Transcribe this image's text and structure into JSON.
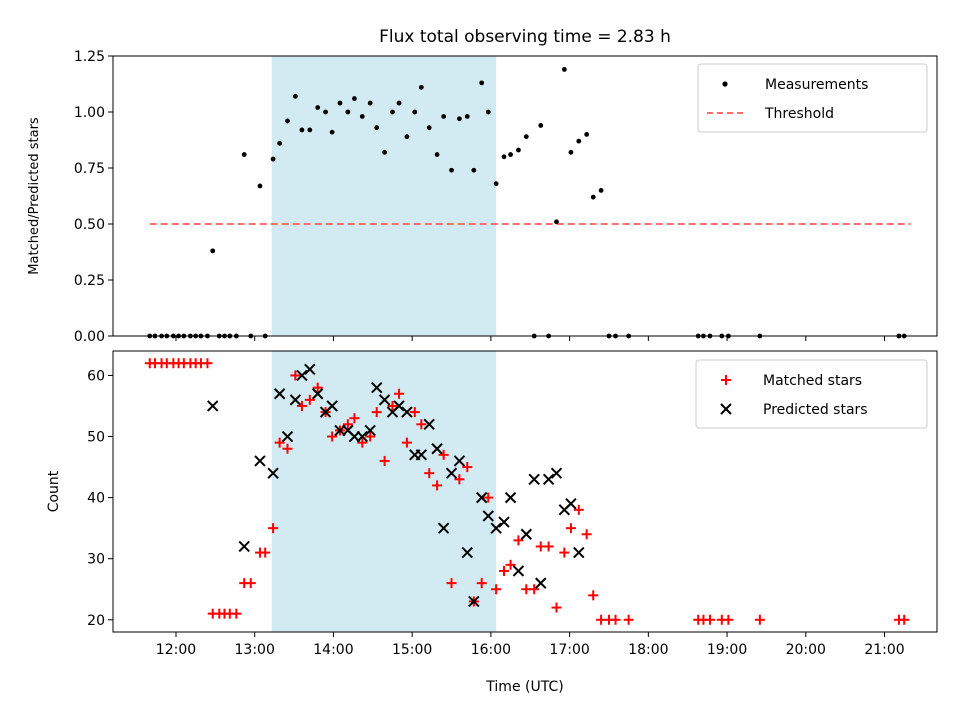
{
  "chart_data": [
    {
      "type": "scatter",
      "title": "Flux total observing time = 2.83 h",
      "xlabel": "",
      "ylabel": "Matched/Predicted stars",
      "xlim": [
        "11:12",
        "21:40"
      ],
      "ylim": [
        0,
        1.25
      ],
      "yticks": [
        "0.00",
        "0.25",
        "0.50",
        "0.75",
        "1.00",
        "1.25"
      ],
      "shaded_span": [
        "13:13",
        "16:04"
      ],
      "shade_color": "#add8e6",
      "legend": {
        "position": "top-right",
        "entries": [
          "Measurements",
          "Threshold"
        ]
      },
      "threshold": {
        "name": "Threshold",
        "y": 0.5,
        "x": [
          "11:40",
          "21:20"
        ],
        "color": "#ff6f6f",
        "style": "dashed"
      },
      "series": [
        {
          "name": "Measurements",
          "color": "#000000",
          "marker": "dot",
          "points": [
            [
              "11:40",
              0
            ],
            [
              "11:44",
              0
            ],
            [
              "11:49",
              0
            ],
            [
              "11:53",
              0
            ],
            [
              "11:58",
              0
            ],
            [
              "12:02",
              0
            ],
            [
              "12:06",
              0
            ],
            [
              "12:11",
              0
            ],
            [
              "12:15",
              0
            ],
            [
              "12:19",
              0
            ],
            [
              "12:24",
              0
            ],
            [
              "12:28",
              0.38
            ],
            [
              "12:33",
              0
            ],
            [
              "12:37",
              0
            ],
            [
              "12:41",
              0
            ],
            [
              "12:46",
              0
            ],
            [
              "12:52",
              0.81
            ],
            [
              "12:57",
              0
            ],
            [
              "13:04",
              0.67
            ],
            [
              "13:08",
              0
            ],
            [
              "13:14",
              0.79
            ],
            [
              "13:19",
              0.86
            ],
            [
              "13:25",
              0.96
            ],
            [
              "13:31",
              1.07
            ],
            [
              "13:36",
              0.92
            ],
            [
              "13:42",
              0.92
            ],
            [
              "13:48",
              1.02
            ],
            [
              "13:54",
              1.0
            ],
            [
              "13:59",
              0.91
            ],
            [
              "14:05",
              1.04
            ],
            [
              "14:11",
              1.0
            ],
            [
              "14:16",
              1.06
            ],
            [
              "14:22",
              0.98
            ],
            [
              "14:28",
              1.04
            ],
            [
              "14:33",
              0.93
            ],
            [
              "14:39",
              0.82
            ],
            [
              "14:45",
              1.0
            ],
            [
              "14:50",
              1.04
            ],
            [
              "14:56",
              0.89
            ],
            [
              "15:02",
              1.0
            ],
            [
              "15:07",
              1.11
            ],
            [
              "15:13",
              0.93
            ],
            [
              "15:19",
              0.81
            ],
            [
              "15:24",
              0.98
            ],
            [
              "15:30",
              0.74
            ],
            [
              "15:36",
              0.97
            ],
            [
              "15:42",
              0.98
            ],
            [
              "15:47",
              0.74
            ],
            [
              "15:53",
              1.13
            ],
            [
              "15:58",
              1.0
            ],
            [
              "16:04",
              0.68
            ],
            [
              "16:10",
              0.8
            ],
            [
              "16:15",
              0.81
            ],
            [
              "16:21",
              0.83
            ],
            [
              "16:27",
              0.89
            ],
            [
              "16:33",
              0
            ],
            [
              "16:38",
              0.94
            ],
            [
              "16:44",
              0
            ],
            [
              "16:50",
              0.51
            ],
            [
              "16:56",
              1.19
            ],
            [
              "17:01",
              0.82
            ],
            [
              "17:07",
              0.87
            ],
            [
              "17:13",
              0.9
            ],
            [
              "17:18",
              0.62
            ],
            [
              "17:24",
              0.65
            ],
            [
              "17:30",
              0
            ],
            [
              "17:35",
              0
            ],
            [
              "17:45",
              0
            ],
            [
              "18:38",
              0
            ],
            [
              "18:42",
              0
            ],
            [
              "18:47",
              0
            ],
            [
              "18:56",
              0
            ],
            [
              "19:01",
              0
            ],
            [
              "19:25",
              0
            ],
            [
              "21:11",
              0
            ],
            [
              "21:15",
              0
            ]
          ]
        }
      ]
    },
    {
      "type": "scatter",
      "title": "",
      "xlabel": "Time (UTC)",
      "ylabel": "Count",
      "xlim": [
        "11:12",
        "21:40"
      ],
      "ylim": [
        18,
        64
      ],
      "yticks": [
        20,
        30,
        40,
        50,
        60
      ],
      "xticks": [
        "12:00",
        "13:00",
        "14:00",
        "15:00",
        "16:00",
        "17:00",
        "18:00",
        "19:00",
        "20:00",
        "21:00"
      ],
      "shaded_span": [
        "13:13",
        "16:04"
      ],
      "shade_color": "#add8e6",
      "legend": {
        "position": "top-right",
        "entries": [
          "Matched stars",
          "Predicted stars"
        ]
      },
      "series": [
        {
          "name": "Matched stars",
          "color": "#ff0000",
          "marker": "plus",
          "points": [
            [
              "11:40",
              62
            ],
            [
              "11:44",
              62
            ],
            [
              "11:49",
              62
            ],
            [
              "11:53",
              62
            ],
            [
              "11:58",
              62
            ],
            [
              "12:02",
              62
            ],
            [
              "12:06",
              62
            ],
            [
              "12:11",
              62
            ],
            [
              "12:15",
              62
            ],
            [
              "12:19",
              62
            ],
            [
              "12:24",
              62
            ],
            [
              "12:28",
              21
            ],
            [
              "12:33",
              21
            ],
            [
              "12:37",
              21
            ],
            [
              "12:41",
              21
            ],
            [
              "12:46",
              21
            ],
            [
              "12:52",
              26
            ],
            [
              "12:57",
              26
            ],
            [
              "13:04",
              31
            ],
            [
              "13:08",
              31
            ],
            [
              "13:14",
              35
            ],
            [
              "13:19",
              49
            ],
            [
              "13:25",
              48
            ],
            [
              "13:31",
              60
            ],
            [
              "13:36",
              55
            ],
            [
              "13:42",
              56
            ],
            [
              "13:48",
              58
            ],
            [
              "13:54",
              54
            ],
            [
              "13:59",
              50
            ],
            [
              "14:05",
              51
            ],
            [
              "14:11",
              52
            ],
            [
              "14:16",
              53
            ],
            [
              "14:22",
              49
            ],
            [
              "14:28",
              50
            ],
            [
              "14:33",
              54
            ],
            [
              "14:39",
              46
            ],
            [
              "14:45",
              55
            ],
            [
              "14:50",
              57
            ],
            [
              "14:56",
              49
            ],
            [
              "15:02",
              54
            ],
            [
              "15:07",
              52
            ],
            [
              "15:13",
              44
            ],
            [
              "15:19",
              42
            ],
            [
              "15:24",
              47
            ],
            [
              "15:30",
              26
            ],
            [
              "15:36",
              43
            ],
            [
              "15:42",
              45
            ],
            [
              "15:47",
              23
            ],
            [
              "15:53",
              26
            ],
            [
              "15:58",
              40
            ],
            [
              "16:04",
              25
            ],
            [
              "16:10",
              28
            ],
            [
              "16:15",
              29
            ],
            [
              "16:21",
              33
            ],
            [
              "16:27",
              25
            ],
            [
              "16:33",
              25
            ],
            [
              "16:38",
              32
            ],
            [
              "16:44",
              32
            ],
            [
              "16:50",
              22
            ],
            [
              "16:56",
              31
            ],
            [
              "17:01",
              35
            ],
            [
              "17:07",
              38
            ],
            [
              "17:13",
              34
            ],
            [
              "17:18",
              24
            ],
            [
              "17:24",
              20
            ],
            [
              "17:30",
              20
            ],
            [
              "17:35",
              20
            ],
            [
              "17:45",
              20
            ],
            [
              "18:38",
              20
            ],
            [
              "18:42",
              20
            ],
            [
              "18:47",
              20
            ],
            [
              "18:56",
              20
            ],
            [
              "19:01",
              20
            ],
            [
              "19:25",
              20
            ],
            [
              "21:11",
              20
            ],
            [
              "21:15",
              20
            ]
          ]
        },
        {
          "name": "Predicted stars",
          "color": "#000000",
          "marker": "x",
          "points": [
            [
              "12:28",
              55
            ],
            [
              "12:52",
              32
            ],
            [
              "13:04",
              46
            ],
            [
              "13:14",
              44
            ],
            [
              "13:19",
              57
            ],
            [
              "13:25",
              50
            ],
            [
              "13:31",
              56
            ],
            [
              "13:36",
              60
            ],
            [
              "13:42",
              61
            ],
            [
              "13:48",
              57
            ],
            [
              "13:54",
              54
            ],
            [
              "13:59",
              55
            ],
            [
              "14:05",
              51
            ],
            [
              "14:11",
              51
            ],
            [
              "14:16",
              50
            ],
            [
              "14:22",
              50
            ],
            [
              "14:28",
              51
            ],
            [
              "14:33",
              58
            ],
            [
              "14:39",
              56
            ],
            [
              "14:45",
              54
            ],
            [
              "14:50",
              55
            ],
            [
              "14:56",
              54
            ],
            [
              "15:02",
              47
            ],
            [
              "15:07",
              47
            ],
            [
              "15:13",
              52
            ],
            [
              "15:19",
              48
            ],
            [
              "15:24",
              35
            ],
            [
              "15:30",
              44
            ],
            [
              "15:36",
              46
            ],
            [
              "15:42",
              31
            ],
            [
              "15:47",
              23
            ],
            [
              "15:53",
              40
            ],
            [
              "15:58",
              37
            ],
            [
              "16:04",
              35
            ],
            [
              "16:10",
              36
            ],
            [
              "16:15",
              40
            ],
            [
              "16:21",
              28
            ],
            [
              "16:27",
              34
            ],
            [
              "16:33",
              43
            ],
            [
              "16:38",
              26
            ],
            [
              "16:44",
              43
            ],
            [
              "16:50",
              44
            ],
            [
              "16:56",
              38
            ],
            [
              "17:01",
              39
            ],
            [
              "17:07",
              31
            ]
          ]
        }
      ]
    }
  ]
}
